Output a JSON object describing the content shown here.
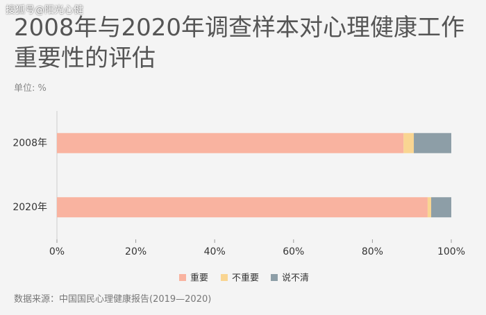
{
  "watermark": "搜狐号@阳光心健",
  "chart_data": {
    "type": "stacked-bar-horizontal",
    "title": "2008年与2020年调查样本对心理健康工作重要性的评估",
    "subtitle": "单位: %",
    "source": "数据来源：中国国民心理健康报告(2019—2020)",
    "categories": [
      "2008年",
      "2020年"
    ],
    "series": [
      {
        "name": "重要",
        "color": "#f9b3a0",
        "values": [
          87.9,
          94.0
        ]
      },
      {
        "name": "不重要",
        "color": "#f9d592",
        "values": [
          2.6,
          0.9
        ]
      },
      {
        "name": "说不清",
        "color": "#8d9ea7",
        "values": [
          9.5,
          5.1
        ]
      }
    ],
    "xlim": [
      0,
      100
    ],
    "xticks": [
      {
        "value": 0,
        "label": "0%"
      },
      {
        "value": 20,
        "label": "20%"
      },
      {
        "value": 40,
        "label": "40%"
      },
      {
        "value": 60,
        "label": "60%"
      },
      {
        "value": 80,
        "label": "80%"
      },
      {
        "value": 100,
        "label": "100%"
      }
    ],
    "legend": "bottom"
  }
}
